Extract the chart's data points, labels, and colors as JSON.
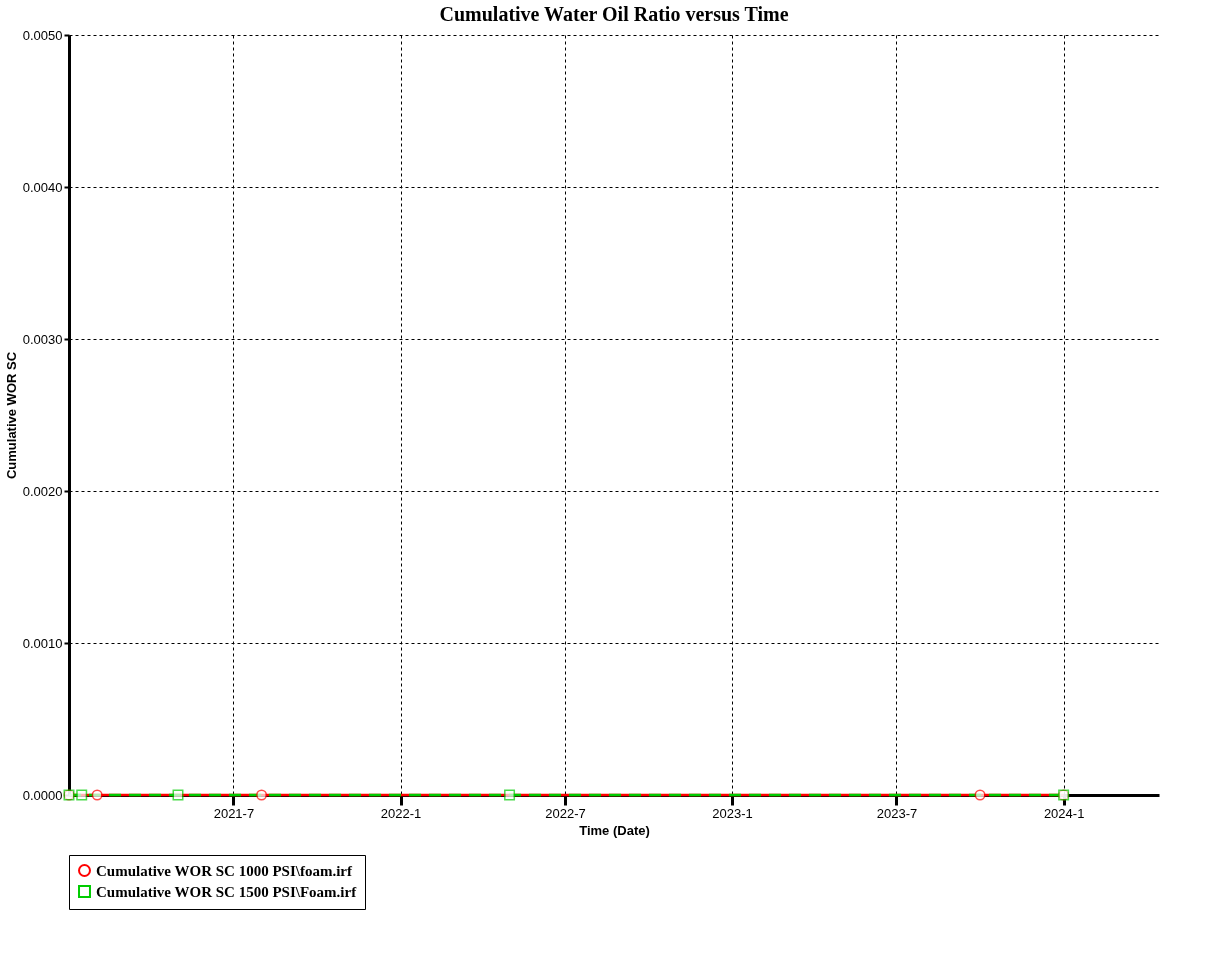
{
  "chart_data": {
    "type": "line",
    "title": "Cumulative Water Oil Ratio  versus Time",
    "xlabel": "Time (Date)",
    "ylabel": "Cumulative WOR SC",
    "series": [
      {
        "name": "Cumulative WOR SC 1000 PSI\\foam.irf",
        "color": "#ff0000",
        "line_style": "solid",
        "marker": "circle",
        "x": [
          "2021-01-01",
          "2021-02-01",
          "2021-08-01",
          "2023-10-01",
          "2024-01-01"
        ],
        "values": [
          0,
          0,
          0,
          0,
          0
        ]
      },
      {
        "name": "Cumulative WOR SC 1500 PSI\\Foam.irf",
        "color": "#00cc00",
        "line_style": "dashed",
        "marker": "square",
        "x": [
          "2021-01-01",
          "2021-01-15",
          "2021-05-01",
          "2022-05-01",
          "2024-01-01"
        ],
        "values": [
          0,
          0,
          0,
          0,
          0
        ]
      }
    ],
    "xlim": [
      "2021-01-01",
      "2024-04-15"
    ],
    "xticks": [
      {
        "value": "2021-07-01",
        "label": "2021-7"
      },
      {
        "value": "2022-01-01",
        "label": "2022-1"
      },
      {
        "value": "2022-07-01",
        "label": "2022-7"
      },
      {
        "value": "2023-01-01",
        "label": "2023-1"
      },
      {
        "value": "2023-07-01",
        "label": "2023-7"
      },
      {
        "value": "2024-01-01",
        "label": "2024-1"
      }
    ],
    "ylim": [
      0,
      0.005
    ],
    "yticks": [
      {
        "value": 0,
        "label": "0.0000"
      },
      {
        "value": 0.001,
        "label": "0.0010"
      },
      {
        "value": 0.002,
        "label": "0.0020"
      },
      {
        "value": 0.003,
        "label": "0.0030"
      },
      {
        "value": 0.004,
        "label": "0.0040"
      },
      {
        "value": 0.005,
        "label": "0.0050"
      }
    ],
    "grid": true,
    "legend": "bottom"
  }
}
